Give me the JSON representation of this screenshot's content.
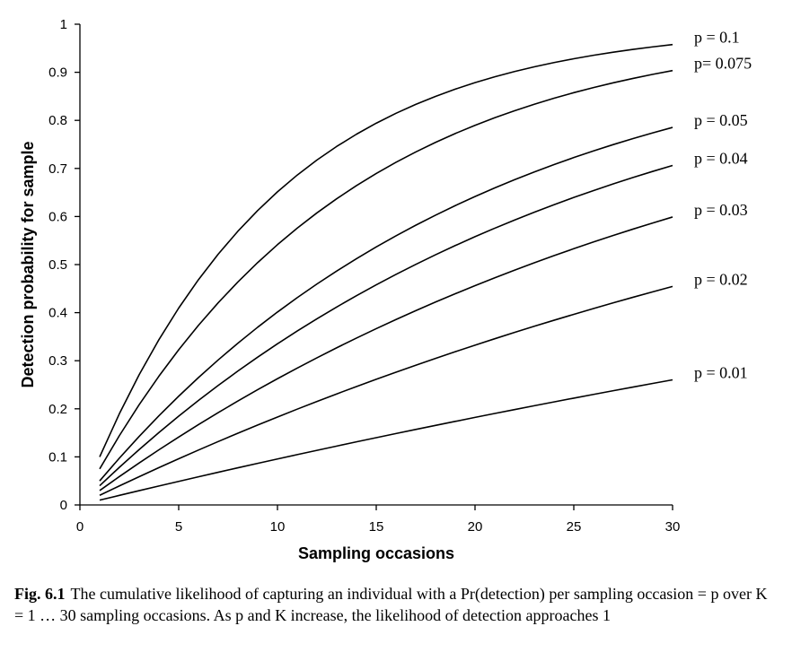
{
  "chart_data": {
    "type": "line",
    "title": "",
    "xlabel": "Sampling occasions",
    "ylabel": "Detection probability for sample",
    "xlim": [
      0,
      30
    ],
    "ylim": [
      0,
      1
    ],
    "x_ticks": [
      "0",
      "5",
      "10",
      "15",
      "20",
      "25",
      "30"
    ],
    "y_ticks": [
      "0",
      "0.1",
      "0.2",
      "0.3",
      "0.4",
      "0.5",
      "0.6",
      "0.7",
      "0.8",
      "0.9",
      "1"
    ],
    "x": [
      1,
      30
    ],
    "series": [
      {
        "name": "p = 0.1",
        "p": 0.1
      },
      {
        "name": "p= 0.075",
        "p": 0.075
      },
      {
        "name": "p = 0.05",
        "p": 0.05
      },
      {
        "name": "p = 0.04",
        "p": 0.04
      },
      {
        "name": "p = 0.03",
        "p": 0.03
      },
      {
        "name": "p = 0.02",
        "p": 0.02
      },
      {
        "name": "p = 0.01",
        "p": 0.01
      }
    ],
    "grid": false,
    "legend": "inline-right",
    "line_color": "#000000"
  },
  "caption": {
    "label": "Fig. 6.1",
    "text": "The cumulative likelihood of capturing an individual with a Pr(detection) per sampling occasion = p over K = 1 … 30 sampling occasions. As p and K increase, the likelihood of detection approaches 1"
  }
}
